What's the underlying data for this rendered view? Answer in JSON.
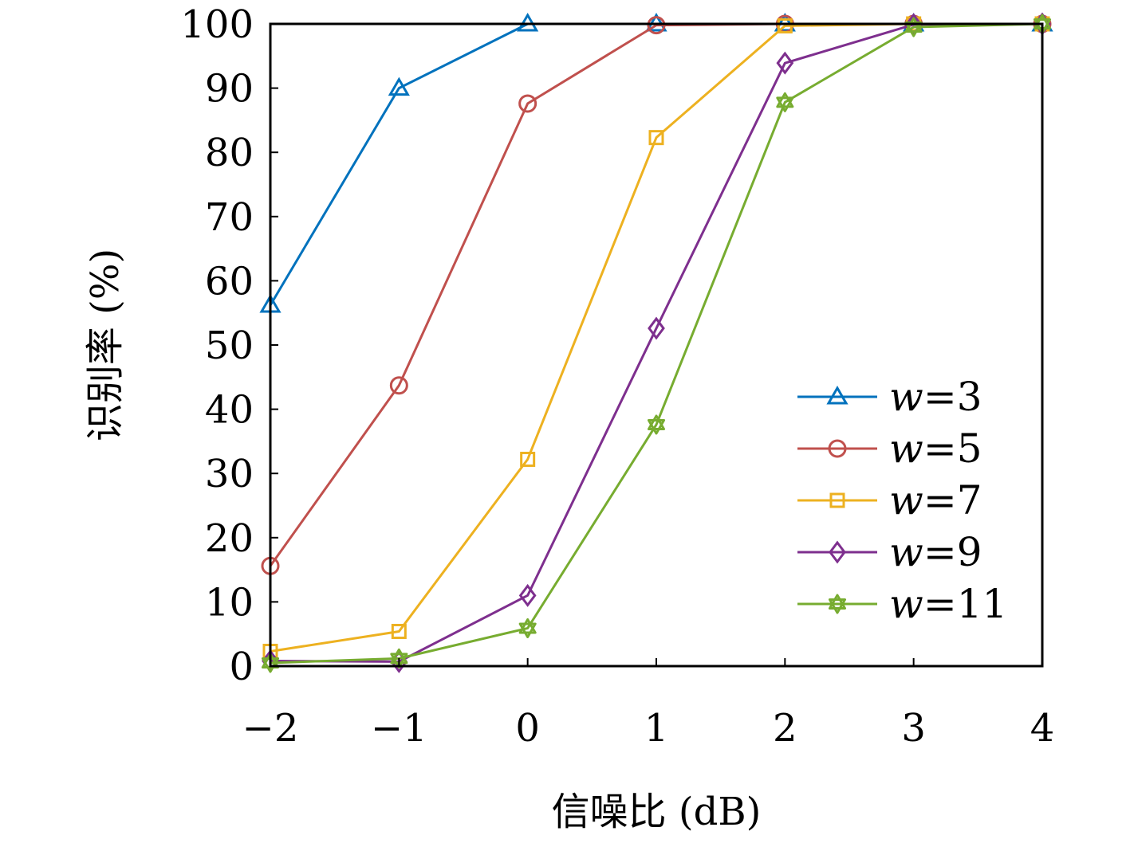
{
  "chart_data": {
    "type": "line",
    "title": "",
    "xlabel": "信噪比 (dB)",
    "ylabel": "识别率 (%)",
    "x": [
      -2,
      -1,
      0,
      1,
      2,
      3,
      4
    ],
    "x_tick_labels": [
      "−2",
      "−1",
      "0",
      "1",
      "2",
      "3",
      "4"
    ],
    "y_ticks": [
      0,
      10,
      20,
      30,
      40,
      50,
      60,
      70,
      80,
      90,
      100
    ],
    "xlim": [
      -2,
      4
    ],
    "ylim": [
      0,
      100
    ],
    "grid": false,
    "legend_position": "bottom-right",
    "series": [
      {
        "name": "w=3",
        "legend_var": "w",
        "legend_eq": "=3",
        "color": "#0072BD",
        "marker": "triangle",
        "values": [
          56.2,
          90.0,
          100,
          100,
          100,
          100,
          100
        ]
      },
      {
        "name": "w=5",
        "legend_var": "w",
        "legend_eq": "=5",
        "color": "#C0504D",
        "marker": "circle",
        "values": [
          15.6,
          43.7,
          87.6,
          99.8,
          100,
          100,
          100
        ]
      },
      {
        "name": "w=7",
        "legend_var": "w",
        "legend_eq": "=7",
        "color": "#EDB120",
        "marker": "square",
        "values": [
          2.3,
          5.4,
          32.2,
          82.3,
          99.7,
          100,
          100
        ]
      },
      {
        "name": "w=9",
        "legend_var": "w",
        "legend_eq": "=9",
        "color": "#7E2F8E",
        "marker": "diamond",
        "values": [
          0.8,
          0.7,
          11.0,
          52.6,
          93.9,
          99.9,
          100
        ]
      },
      {
        "name": "w=11",
        "legend_var": "w",
        "legend_eq": "=11",
        "color": "#77AC30",
        "marker": "hexagram",
        "values": [
          0.5,
          1.2,
          5.9,
          37.6,
          87.8,
          99.5,
          100
        ]
      }
    ]
  }
}
